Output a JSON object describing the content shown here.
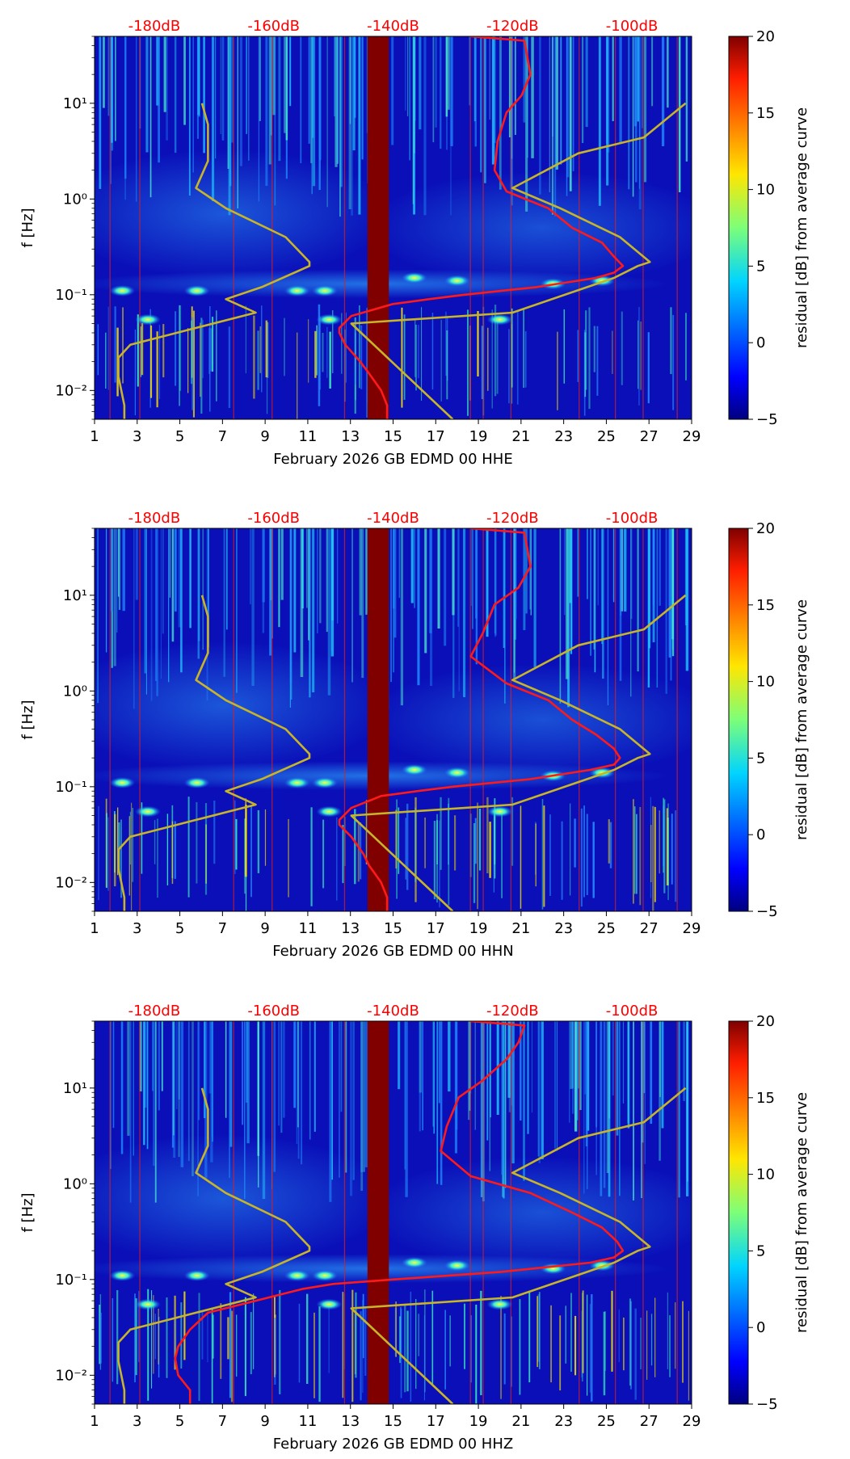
{
  "figure": {
    "colorbar_label": "residual [dB] from average curve",
    "colorbar_ticks": [
      "20",
      "15",
      "10",
      "5",
      "0",
      "−5"
    ],
    "colorbar_range": [
      -5,
      20
    ],
    "y_label": "f [Hz]",
    "y_ticks": [
      "10¹",
      "10⁰",
      "10⁻¹",
      "10⁻²"
    ],
    "x_ticks": [
      "1",
      "3",
      "5",
      "7",
      "9",
      "11",
      "13",
      "15",
      "17",
      "19",
      "21",
      "23",
      "25",
      "27",
      "29"
    ],
    "top_ticks": [
      "-180dB",
      "-160dB",
      "-140dB",
      "-120dB",
      "-100dB"
    ],
    "colors": {
      "median_curve": "#ff1a1a",
      "noise_model": "#c8b428",
      "top_tick_text": "#ff0000",
      "gap": "#800000"
    }
  },
  "chart_data": [
    {
      "type": "heatmap",
      "title": "",
      "xlabel": "February 2026 GB EDMD 00 HHE",
      "ylabel": "f [Hz]",
      "xlim": [
        1,
        29
      ],
      "ylim_hz": [
        0.005,
        50
      ],
      "top_axis_db": [
        -190,
        -90
      ],
      "colorbar": {
        "label": "residual [dB] from average curve",
        "range": [
          -5,
          20
        ]
      },
      "data_gap_days": [
        13.8,
        14.8
      ],
      "median_psd_curve": [
        [
          50,
          -127
        ],
        [
          45,
          -118
        ],
        [
          20,
          -117
        ],
        [
          12,
          -118.5
        ],
        [
          8,
          -121
        ],
        [
          4,
          -122.5
        ],
        [
          2,
          -123
        ],
        [
          1.2,
          -121
        ],
        [
          0.8,
          -114
        ],
        [
          0.5,
          -110
        ],
        [
          0.35,
          -105
        ],
        [
          0.25,
          -103
        ],
        [
          0.2,
          -101.5
        ],
        [
          0.17,
          -103
        ],
        [
          0.15,
          -106
        ],
        [
          0.12,
          -116
        ],
        [
          0.1,
          -128
        ],
        [
          0.09,
          -134
        ],
        [
          0.08,
          -140
        ],
        [
          0.06,
          -147
        ],
        [
          0.045,
          -149
        ],
        [
          0.04,
          -149
        ],
        [
          0.03,
          -148
        ],
        [
          0.02,
          -145.5
        ],
        [
          0.015,
          -144
        ],
        [
          0.01,
          -142
        ],
        [
          0.007,
          -141
        ],
        [
          0.005,
          -141
        ]
      ],
      "noise_model_low": [
        [
          10,
          -172
        ],
        [
          6,
          -171
        ],
        [
          2.5,
          -171
        ],
        [
          1.3,
          -173
        ],
        [
          0.8,
          -168
        ],
        [
          0.4,
          -158
        ],
        [
          0.22,
          -154
        ],
        [
          0.2,
          -154
        ],
        [
          0.12,
          -162
        ],
        [
          0.09,
          -168
        ],
        [
          0.065,
          -163
        ],
        [
          0.045,
          -173
        ],
        [
          0.03,
          -184
        ],
        [
          0.022,
          -186
        ],
        [
          0.014,
          -186
        ],
        [
          0.007,
          -185
        ],
        [
          0.005,
          -185
        ]
      ],
      "noise_model_high": [
        [
          10,
          -91
        ],
        [
          4.4,
          -98
        ],
        [
          3,
          -109
        ],
        [
          1.3,
          -120
        ],
        [
          0.8,
          -112
        ],
        [
          0.4,
          -102
        ],
        [
          0.22,
          -97
        ],
        [
          0.2,
          -99
        ],
        [
          0.15,
          -103
        ],
        [
          0.065,
          -120
        ],
        [
          0.05,
          -147
        ],
        [
          0.005,
          -130
        ]
      ]
    },
    {
      "type": "heatmap",
      "title": "",
      "xlabel": "February 2026 GB EDMD 00 HHN",
      "ylabel": "f [Hz]",
      "xlim": [
        1,
        29
      ],
      "ylim_hz": [
        0.005,
        50
      ],
      "top_axis_db": [
        -190,
        -90
      ],
      "colorbar": {
        "label": "residual [dB] from average curve",
        "range": [
          -5,
          20
        ]
      },
      "data_gap_days": [
        13.8,
        14.8
      ],
      "median_psd_curve": [
        [
          50,
          -127
        ],
        [
          45,
          -118
        ],
        [
          20,
          -117
        ],
        [
          12,
          -119
        ],
        [
          8,
          -123
        ],
        [
          4,
          -125
        ],
        [
          2.3,
          -127
        ],
        [
          1.2,
          -121
        ],
        [
          0.8,
          -114
        ],
        [
          0.5,
          -110
        ],
        [
          0.35,
          -106
        ],
        [
          0.25,
          -103
        ],
        [
          0.2,
          -102
        ],
        [
          0.17,
          -103
        ],
        [
          0.15,
          -107
        ],
        [
          0.12,
          -117
        ],
        [
          0.1,
          -130
        ],
        [
          0.09,
          -136
        ],
        [
          0.08,
          -142
        ],
        [
          0.06,
          -147
        ],
        [
          0.045,
          -149
        ],
        [
          0.04,
          -149
        ],
        [
          0.03,
          -147
        ],
        [
          0.02,
          -145
        ],
        [
          0.015,
          -144
        ],
        [
          0.01,
          -142
        ],
        [
          0.007,
          -141
        ],
        [
          0.005,
          -141
        ]
      ],
      "noise_model_low": [
        [
          10,
          -172
        ],
        [
          6,
          -171
        ],
        [
          2.5,
          -171
        ],
        [
          1.3,
          -173
        ],
        [
          0.8,
          -168
        ],
        [
          0.4,
          -158
        ],
        [
          0.22,
          -154
        ],
        [
          0.2,
          -154
        ],
        [
          0.12,
          -162
        ],
        [
          0.09,
          -168
        ],
        [
          0.065,
          -163
        ],
        [
          0.045,
          -173
        ],
        [
          0.03,
          -184
        ],
        [
          0.022,
          -186
        ],
        [
          0.014,
          -186
        ],
        [
          0.007,
          -185
        ],
        [
          0.005,
          -185
        ]
      ],
      "noise_model_high": [
        [
          10,
          -91
        ],
        [
          4.4,
          -98
        ],
        [
          3,
          -109
        ],
        [
          1.3,
          -120
        ],
        [
          0.8,
          -112
        ],
        [
          0.4,
          -102
        ],
        [
          0.22,
          -97
        ],
        [
          0.2,
          -99
        ],
        [
          0.15,
          -103
        ],
        [
          0.065,
          -120
        ],
        [
          0.05,
          -147
        ],
        [
          0.005,
          -130
        ]
      ]
    },
    {
      "type": "heatmap",
      "title": "",
      "xlabel": "February 2026 GB EDMD 00 HHZ",
      "ylabel": "f [Hz]",
      "xlim": [
        1,
        29
      ],
      "ylim_hz": [
        0.005,
        50
      ],
      "top_axis_db": [
        -190,
        -90
      ],
      "colorbar": {
        "label": "residual [dB] from average curve",
        "range": [
          -5,
          20
        ]
      },
      "data_gap_days": [
        13.8,
        14.8
      ],
      "median_psd_curve": [
        [
          50,
          -127
        ],
        [
          45,
          -118
        ],
        [
          30,
          -119
        ],
        [
          20,
          -121
        ],
        [
          12,
          -125
        ],
        [
          8,
          -129
        ],
        [
          4,
          -131
        ],
        [
          2.2,
          -132
        ],
        [
          1.2,
          -127
        ],
        [
          0.8,
          -117
        ],
        [
          0.5,
          -110
        ],
        [
          0.35,
          -105
        ],
        [
          0.25,
          -102.5
        ],
        [
          0.2,
          -101.5
        ],
        [
          0.17,
          -103
        ],
        [
          0.15,
          -107
        ],
        [
          0.12,
          -122
        ],
        [
          0.1,
          -140
        ],
        [
          0.09,
          -150
        ],
        [
          0.08,
          -155
        ],
        [
          0.06,
          -163
        ],
        [
          0.045,
          -171
        ],
        [
          0.03,
          -174
        ],
        [
          0.02,
          -176
        ],
        [
          0.015,
          -176.5
        ],
        [
          0.01,
          -176
        ],
        [
          0.007,
          -174
        ],
        [
          0.005,
          -174
        ]
      ],
      "noise_model_low": [
        [
          10,
          -172
        ],
        [
          6,
          -171
        ],
        [
          2.5,
          -171
        ],
        [
          1.3,
          -173
        ],
        [
          0.8,
          -168
        ],
        [
          0.4,
          -158
        ],
        [
          0.22,
          -154
        ],
        [
          0.2,
          -154
        ],
        [
          0.12,
          -162
        ],
        [
          0.09,
          -168
        ],
        [
          0.065,
          -163
        ],
        [
          0.045,
          -173
        ],
        [
          0.03,
          -184
        ],
        [
          0.022,
          -186
        ],
        [
          0.014,
          -186
        ],
        [
          0.007,
          -185
        ],
        [
          0.005,
          -185
        ]
      ],
      "noise_model_high": [
        [
          10,
          -91
        ],
        [
          4.4,
          -98
        ],
        [
          3,
          -109
        ],
        [
          1.3,
          -120
        ],
        [
          0.8,
          -112
        ],
        [
          0.4,
          -102
        ],
        [
          0.22,
          -97
        ],
        [
          0.2,
          -99
        ],
        [
          0.15,
          -103
        ],
        [
          0.065,
          -120
        ],
        [
          0.05,
          -147
        ],
        [
          0.005,
          -130
        ]
      ]
    }
  ]
}
